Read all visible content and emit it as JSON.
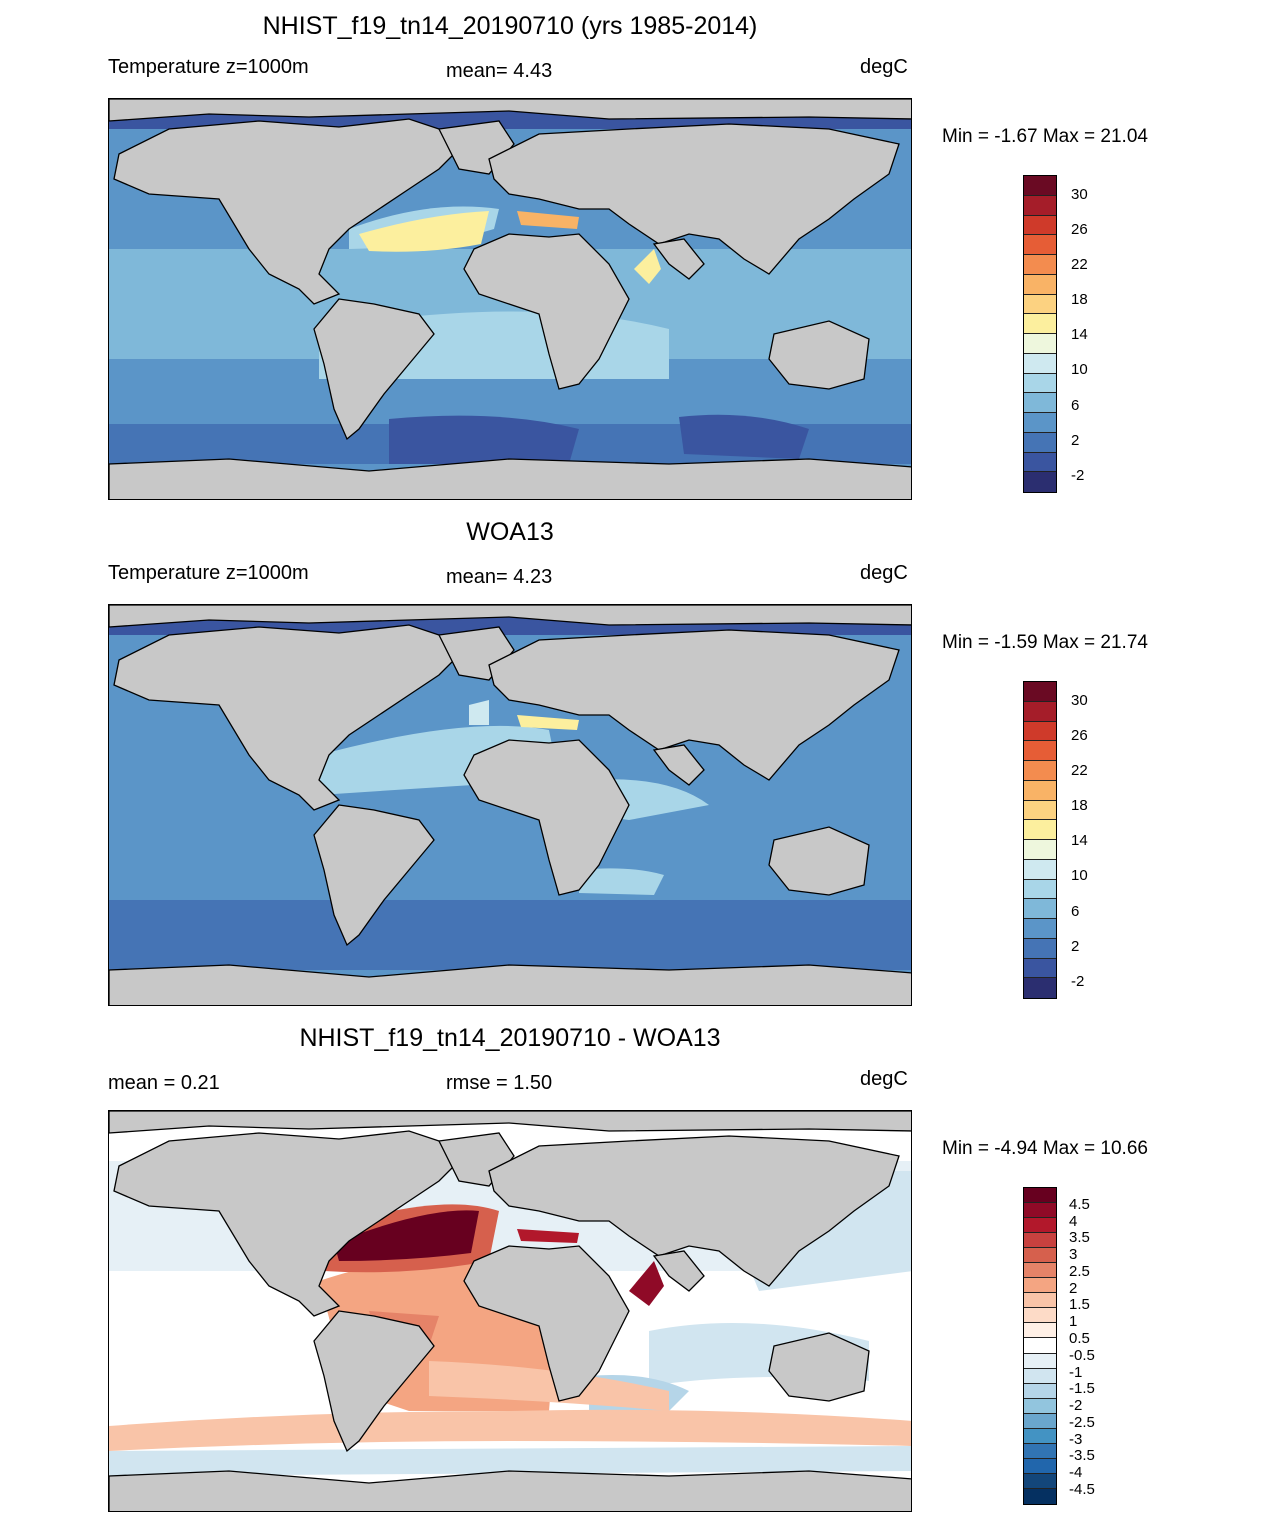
{
  "panels": [
    {
      "title": "NHIST_f19_tn14_20190710 (yrs 1985-2014)",
      "left_label": "Temperature z=1000m",
      "center_label": "mean=   4.43",
      "units": "degC",
      "minmax": "Min =  -1.67 Max =  21.04",
      "colorbar_ticks": [
        "30",
        "26",
        "22",
        "18",
        "14",
        "10",
        "6",
        "2",
        "-2"
      ]
    },
    {
      "title": "WOA13",
      "left_label": "Temperature z=1000m",
      "center_label": "mean=   4.23",
      "units": "degC",
      "minmax": "Min =  -1.59 Max =  21.74",
      "colorbar_ticks": [
        "30",
        "26",
        "22",
        "18",
        "14",
        "10",
        "6",
        "2",
        "-2"
      ]
    },
    {
      "title": "NHIST_f19_tn14_20190710 - WOA13",
      "left_label": "mean =   0.21",
      "center_label": "rmse =   1.50",
      "units": "degC",
      "minmax": "Min =  -4.94 Max =  10.66",
      "colorbar_ticks": [
        "4.5",
        "4",
        "3.5",
        "3",
        "2.5",
        "2",
        "1.5",
        "1",
        "0.5",
        "-0.5",
        "-1",
        "-1.5",
        "-2",
        "-2.5",
        "-3",
        "-3.5",
        "-4",
        "-4.5"
      ]
    }
  ],
  "colors": {
    "land": "#c8c8c8",
    "temp_scale": [
      "#6a0a23",
      "#a51d29",
      "#cf3a2a",
      "#e65d36",
      "#f38c4f",
      "#f9b366",
      "#fcd281",
      "#fcef9e",
      "#eef7dd",
      "#cfe9f0",
      "#a9d6e8",
      "#7fb8d9",
      "#5b95c8",
      "#4574b5",
      "#3a55a0",
      "#2b2e70"
    ],
    "diff_scale": [
      "#67001f",
      "#8f0a27",
      "#b2182b",
      "#c8413f",
      "#d6604d",
      "#e58368",
      "#f4a582",
      "#f9c4a8",
      "#fddbc7",
      "#fff0e6",
      "#ffffff",
      "#e6f0f6",
      "#d1e5f0",
      "#b5d5e8",
      "#92c5de",
      "#6aa6cd",
      "#4393c3",
      "#3174b3",
      "#2166ac",
      "#13467a",
      "#053061"
    ]
  }
}
